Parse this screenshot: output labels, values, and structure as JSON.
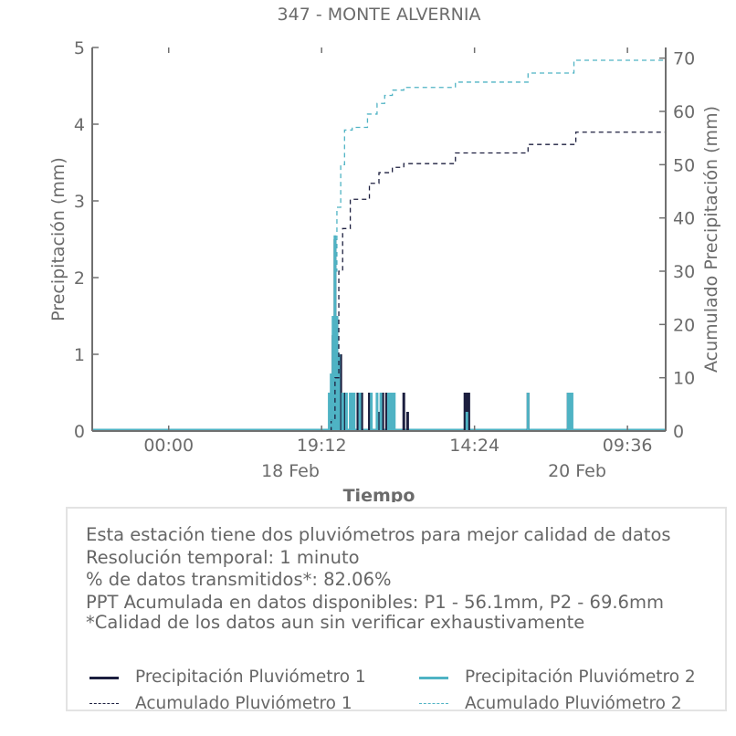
{
  "chart_data": {
    "type": "line",
    "title": "347 - MONTE ALVERNIA",
    "xlabel": "Tiempo",
    "ylabel_left": "Precipitación (mm)",
    "ylabel_right": "Acumulado Precipitación (mm)",
    "x_ticks": [
      "00:00",
      "19:12",
      "14:24",
      "09:36"
    ],
    "date_labels": [
      "18 Feb",
      "20 Feb"
    ],
    "ylim_left": [
      0,
      5
    ],
    "yticks_left": [
      "0",
      "1",
      "2",
      "3",
      "4",
      "5"
    ],
    "ylim_right": [
      0,
      72
    ],
    "yticks_right": [
      "0",
      "10",
      "20",
      "30",
      "40",
      "50",
      "60",
      "70"
    ],
    "grid": false,
    "colors": {
      "p1": "#1c1f3f",
      "p2": "#4fb3c4"
    },
    "series": [
      {
        "name": "Precipitación Pluviómetro 1",
        "axis": "left",
        "style": "bars",
        "x": [
          1.25,
          1.26,
          1.27,
          1.28,
          1.3,
          1.32,
          1.39,
          1.41,
          1.45,
          1.5,
          1.52,
          1.54,
          1.57,
          1.63,
          1.65,
          1.95,
          1.96,
          1.97,
          2.28,
          2.49,
          2.5
        ],
        "y": [
          0.5,
          1.25,
          2.5,
          1.5,
          1.0,
          0.5,
          0.5,
          0.5,
          0.5,
          0.25,
          0.5,
          0.5,
          0.5,
          0.5,
          0.25,
          0.5,
          0.5,
          0.5,
          0.5,
          0.5,
          0.5
        ]
      },
      {
        "name": "Precipitación Pluviómetro 2",
        "axis": "left",
        "style": "bars",
        "x": [
          1.24,
          1.25,
          1.26,
          1.27,
          1.28,
          1.29,
          1.31,
          1.33,
          1.35,
          1.36,
          1.37,
          1.4,
          1.46,
          1.49,
          1.51,
          1.55,
          1.56,
          1.57,
          1.58,
          1.96,
          2.28,
          2.49,
          2.5,
          2.51
        ],
        "y": [
          0.5,
          0.75,
          1.5,
          2.55,
          1.5,
          1.0,
          0.5,
          0.5,
          0.5,
          0.5,
          0.5,
          0.5,
          0.5,
          0.5,
          0.5,
          0.5,
          0.5,
          0.5,
          0.5,
          0.25,
          0.5,
          0.5,
          0.5,
          0.5
        ]
      },
      {
        "name": "Acumulado Pluviómetro 1",
        "axis": "right",
        "style": "dashed-step",
        "x": [
          0.0,
          1.25,
          1.27,
          1.29,
          1.31,
          1.35,
          1.45,
          1.5,
          1.57,
          1.63,
          1.9,
          2.28,
          2.53,
          3.0
        ],
        "y": [
          0,
          2,
          10,
          30,
          38,
          43.5,
          46.5,
          48.5,
          49.5,
          50.2,
          52.2,
          53.8,
          56.1,
          56.1
        ]
      },
      {
        "name": "Acumulado Pluviómetro 2",
        "axis": "right",
        "style": "dashed-step",
        "x": [
          0.0,
          1.24,
          1.26,
          1.27,
          1.28,
          1.3,
          1.32,
          1.36,
          1.44,
          1.49,
          1.53,
          1.57,
          1.63,
          1.9,
          2.28,
          2.52,
          3.0
        ],
        "y": [
          0,
          2,
          12,
          30,
          42,
          50,
          56.5,
          57,
          59.5,
          61.5,
          63,
          64,
          64.5,
          65.5,
          67.2,
          69.6,
          69.6
        ]
      }
    ]
  },
  "info": {
    "line1": "Esta estación tiene dos pluviómetros para mejor calidad de datos",
    "line2": "Resolución temporal: 1 minuto",
    "line3": "% de datos transmitidos*: 82.06%",
    "line4": "PPT Acumulada en datos disponibles: P1 - 56.1mm, P2 - 69.6mm",
    "line5": "*Calidad de los datos aun sin verificar exhaustivamente"
  },
  "legend": {
    "p1": "Precipitación Pluviómetro 1",
    "p2": "Precipitación Pluviómetro 2",
    "a1": "Acumulado Pluviómetro 1",
    "a2": "Acumulado Pluviómetro 2"
  }
}
